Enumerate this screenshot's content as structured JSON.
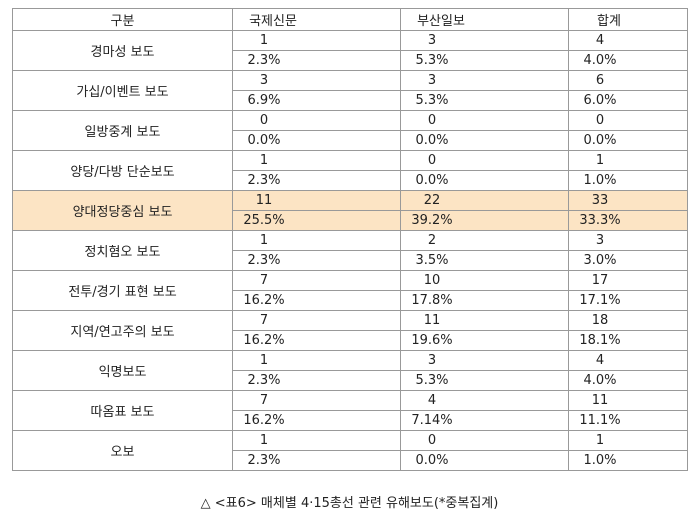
{
  "table": {
    "header": [
      "구분",
      "국제신문",
      "부산일보",
      "합계"
    ],
    "rows": [
      {
        "label": "경마성 보도",
        "counts": [
          1,
          3,
          4
        ],
        "percents": [
          "2.3%",
          "5.3%",
          "4.0%"
        ]
      },
      {
        "label": "가십/이벤트 보도",
        "counts": [
          3,
          3,
          6
        ],
        "percents": [
          "6.9%",
          "5.3%",
          "6.0%"
        ]
      },
      {
        "label": "일방중계 보도",
        "counts": [
          0,
          0,
          0
        ],
        "percents": [
          "0.0%",
          "0.0%",
          "0.0%"
        ]
      },
      {
        "label": "양당/다방 단순보도",
        "counts": [
          1,
          0,
          1
        ],
        "percents": [
          "2.3%",
          "0.0%",
          "1.0%"
        ]
      },
      {
        "label": "양대정당중심 보도",
        "counts": [
          11,
          22,
          33
        ],
        "percents": [
          "25.5%",
          "39.2%",
          "33.3%"
        ]
      },
      {
        "label": "정치혐오 보도",
        "counts": [
          1,
          2,
          3
        ],
        "percents": [
          "2.3%",
          "3.5%",
          "3.0%"
        ]
      },
      {
        "label": "전투/경기 표현 보도",
        "counts": [
          7,
          10,
          17
        ],
        "percents": [
          "16.2%",
          "17.8%",
          "17.1%"
        ]
      },
      {
        "label": "지역/연고주의 보도",
        "counts": [
          7,
          11,
          18
        ],
        "percents": [
          "16.2%",
          "19.6%",
          "18.1%"
        ]
      },
      {
        "label": "익명보도",
        "counts": [
          1,
          3,
          4
        ],
        "percents": [
          "2.3%",
          "5.3%",
          "4.0%"
        ]
      },
      {
        "label": "따옴표 보도",
        "counts": [
          7,
          4,
          11
        ],
        "percents": [
          "16.2%",
          "7.14%",
          "11.1%"
        ]
      },
      {
        "label": "오보",
        "counts": [
          1,
          0,
          1
        ],
        "percents": [
          "2.3%",
          "0.0%",
          "1.0%"
        ]
      }
    ]
  },
  "caption": "△ <표6> 매체별 4·15총선 관련 유해보도(*중복집계)"
}
